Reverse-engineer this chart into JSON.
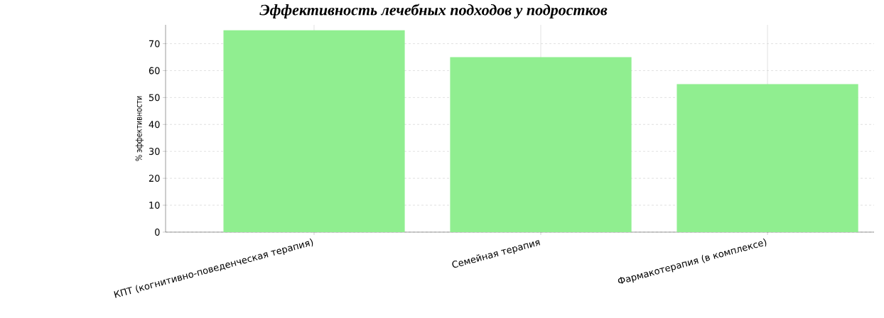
{
  "chart_data": {
    "type": "bar",
    "title": "Эффективность лечебных подходов у подростков",
    "categories": [
      "КПТ (когнитивно-поведенческая терапия)",
      "Семейная терапия",
      "Фармакотерапия (в комплексе)"
    ],
    "values": [
      75,
      65,
      55
    ],
    "color": "#90ee90",
    "ylabel": "% эффективности",
    "ylim": [
      0,
      77
    ],
    "yticks": [
      0,
      10,
      20,
      30,
      40,
      50,
      60,
      70
    ],
    "grid": true
  }
}
